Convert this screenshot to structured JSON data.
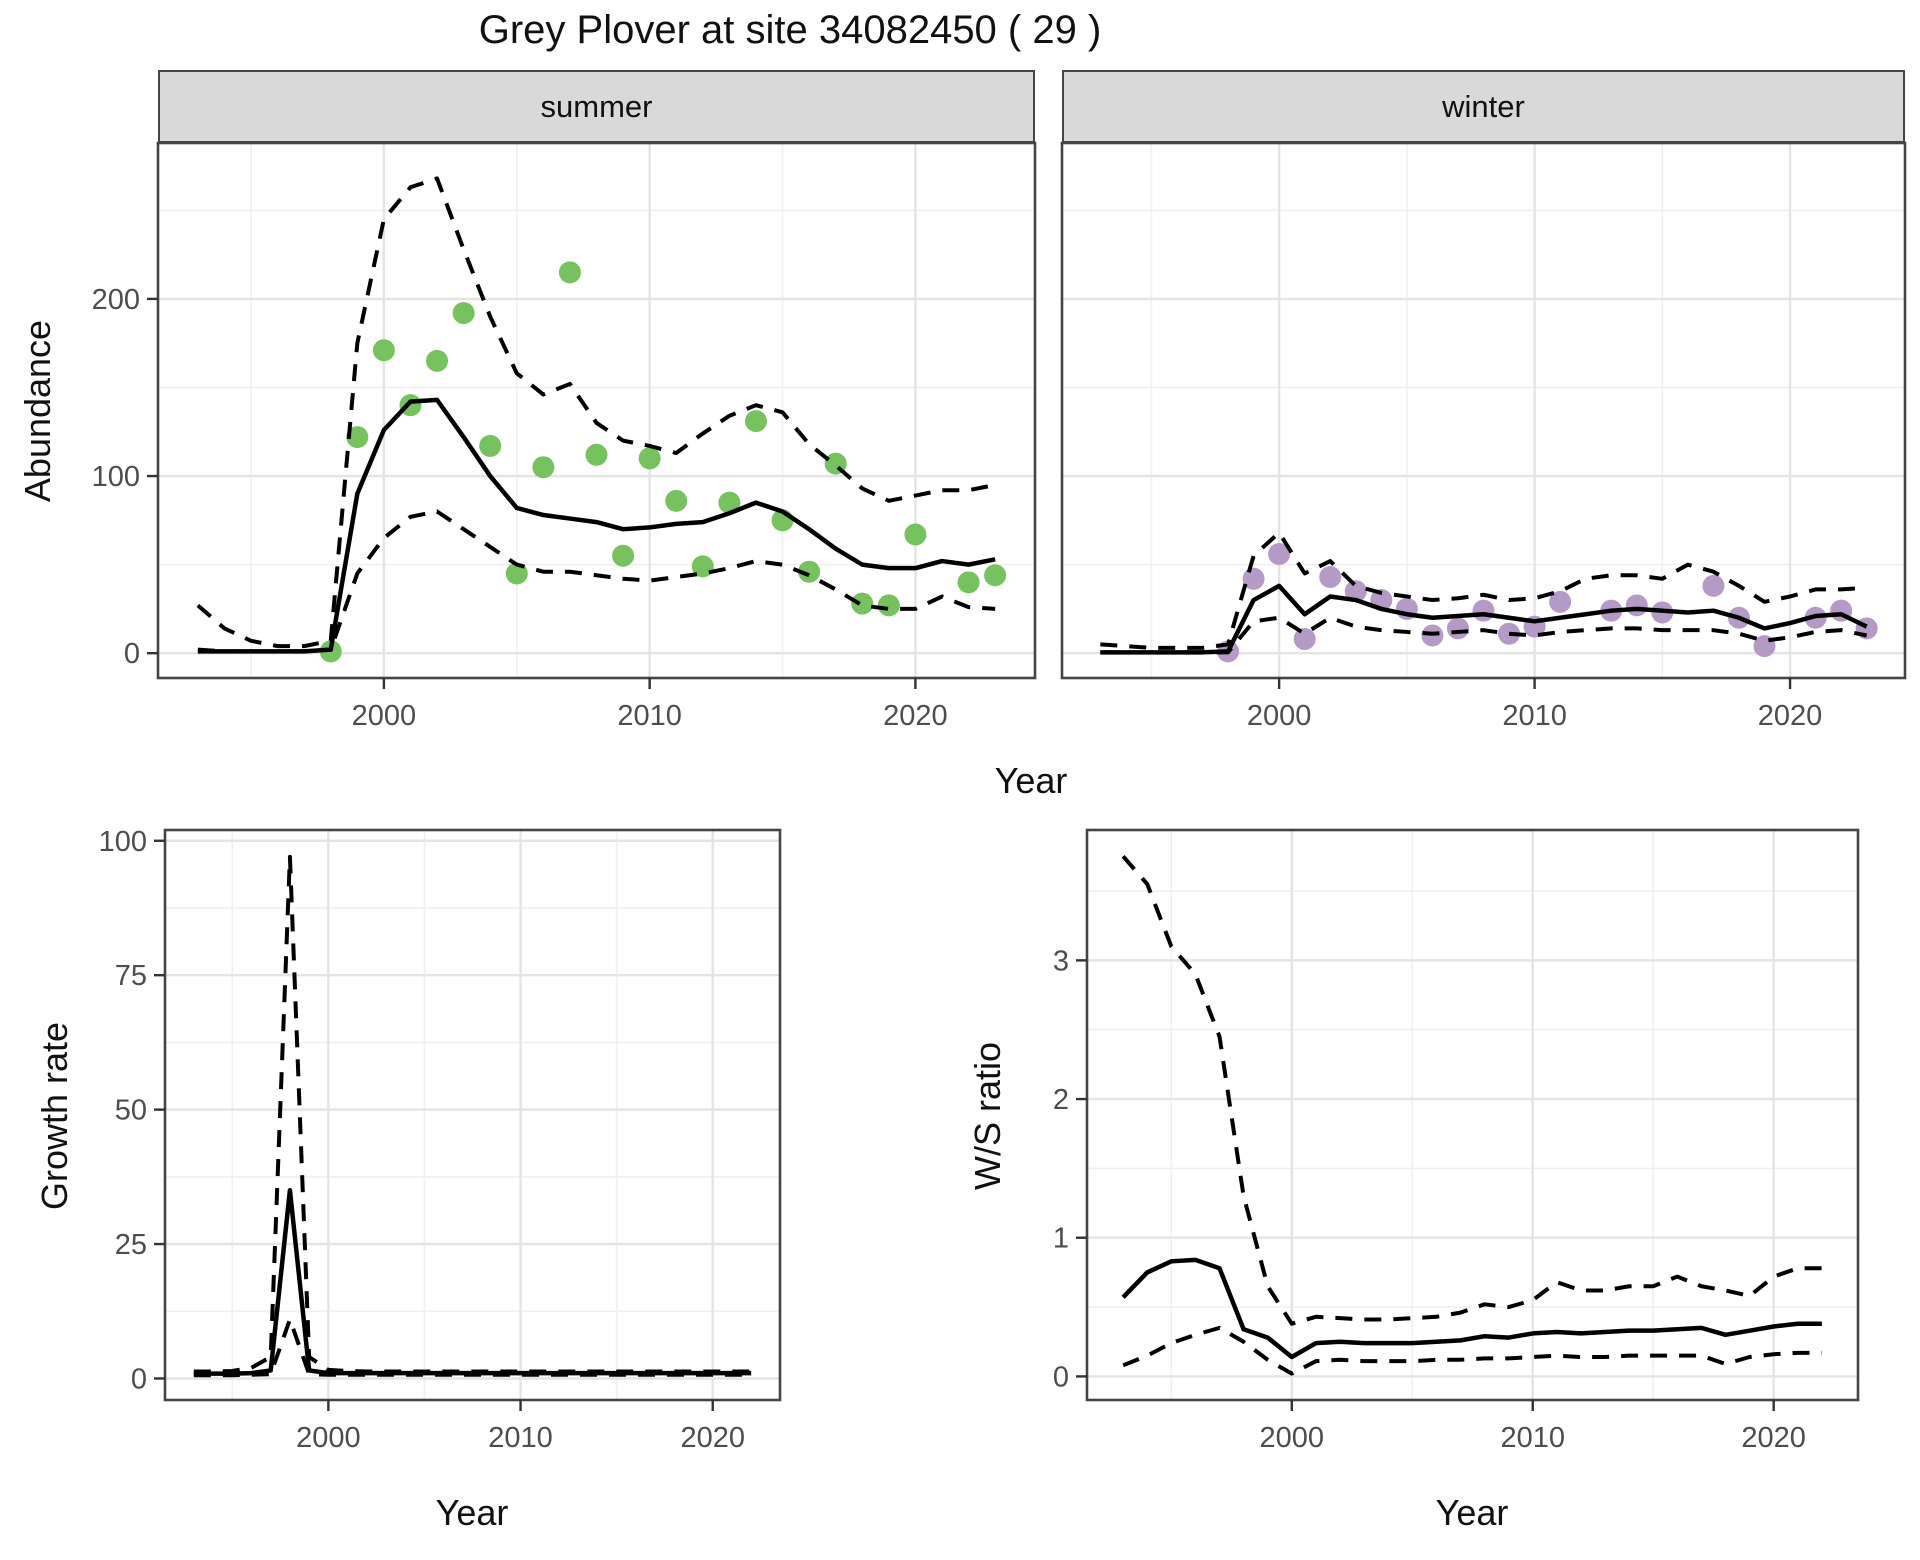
{
  "title": "Grey Plover at site 34082450 ( 29 )",
  "colors": {
    "summer_point": "#75c25f",
    "winter_point": "#b59ac8",
    "line": "#000000",
    "strip_bg": "#d9d9d9",
    "panel_border": "#454545",
    "grid_major": "#e4e4e4",
    "grid_minor": "#f0f0f0",
    "tick_label": "#4d4d4d"
  },
  "chart_data": [
    {
      "id": "abundance-summer",
      "type": "line+scatter",
      "strip": "summer",
      "xlabel": "Year",
      "ylabel": "Abundance",
      "x_range": [
        1991.5,
        2024.5
      ],
      "y_range": [
        -14,
        288
      ],
      "x_ticks": [
        2000,
        2010,
        2020
      ],
      "x_minor": [
        1995,
        2005,
        2015
      ],
      "y_ticks": [
        0,
        100,
        200
      ],
      "y_minor": [
        50,
        150,
        250
      ],
      "show_y_labels": true,
      "x": [
        1993,
        1994,
        1995,
        1996,
        1997,
        1998,
        1999,
        2000,
        2001,
        2002,
        2003,
        2004,
        2005,
        2006,
        2007,
        2008,
        2009,
        2010,
        2011,
        2012,
        2013,
        2014,
        2015,
        2016,
        2017,
        2018,
        2019,
        2020,
        2021,
        2022,
        2023
      ],
      "series": [
        {
          "name": "upper95",
          "style": "dashed",
          "y": [
            27,
            14,
            7,
            4,
            4,
            7,
            175,
            245,
            263,
            268,
            228,
            190,
            158,
            146,
            152,
            130,
            120,
            117,
            113,
            124,
            134,
            140,
            136,
            118,
            106,
            93,
            86,
            89,
            92,
            92,
            95
          ]
        },
        {
          "name": "fit",
          "style": "solid",
          "y": [
            1,
            1,
            1,
            1,
            1,
            2,
            90,
            126,
            142,
            143,
            122,
            100,
            82,
            78,
            76,
            74,
            70,
            71,
            73,
            74,
            79,
            85,
            80,
            70,
            59,
            50,
            48,
            48,
            52,
            50,
            53
          ]
        },
        {
          "name": "lower95",
          "style": "dashed",
          "y": [
            2,
            1,
            1,
            1,
            1,
            2,
            45,
            65,
            77,
            80,
            70,
            60,
            50,
            46,
            46,
            44,
            42,
            41,
            43,
            45,
            48,
            52,
            50,
            44,
            36,
            27,
            25,
            25,
            32,
            26,
            25
          ]
        }
      ],
      "points": {
        "color": "#75c25f",
        "x": [
          1998,
          1999,
          2000,
          2001,
          2002,
          2003,
          2004,
          2005,
          2006,
          2007,
          2008,
          2009,
          2010,
          2011,
          2012,
          2013,
          2014,
          2015,
          2016,
          2017,
          2018,
          2019,
          2020,
          2022,
          2023
        ],
        "y": [
          1,
          122,
          171,
          140,
          165,
          192,
          117,
          45,
          105,
          215,
          112,
          55,
          110,
          86,
          49,
          85,
          131,
          75,
          46,
          107,
          28,
          27,
          67,
          40,
          44
        ]
      }
    },
    {
      "id": "abundance-winter",
      "type": "line+scatter",
      "strip": "winter",
      "xlabel": "Year",
      "ylabel": "",
      "x_range": [
        1991.5,
        2024.5
      ],
      "y_range": [
        -14,
        288
      ],
      "x_ticks": [
        2000,
        2010,
        2020
      ],
      "x_minor": [
        1995,
        2005,
        2015
      ],
      "y_ticks": [
        0,
        100,
        200
      ],
      "y_minor": [
        50,
        150,
        250
      ],
      "show_y_labels": false,
      "x": [
        1993,
        1994,
        1995,
        1996,
        1997,
        1998,
        1999,
        2000,
        2001,
        2002,
        2003,
        2004,
        2005,
        2006,
        2007,
        2008,
        2009,
        2010,
        2011,
        2012,
        2013,
        2014,
        2015,
        2016,
        2017,
        2018,
        2019,
        2020,
        2021,
        2022,
        2023
      ],
      "series": [
        {
          "name": "upper95",
          "style": "dashed",
          "y": [
            5,
            4,
            3,
            3,
            3,
            5,
            55,
            68,
            45,
            52,
            38,
            34,
            32,
            30,
            31,
            33,
            30,
            31,
            35,
            42,
            44,
            44,
            42,
            50,
            46,
            38,
            29,
            32,
            36,
            36,
            37
          ]
        },
        {
          "name": "fit",
          "style": "solid",
          "y": [
            0.5,
            0.5,
            0.5,
            0.5,
            0.5,
            1,
            30,
            38,
            22,
            32,
            30,
            25,
            22,
            20,
            21,
            22,
            20,
            18,
            20,
            22,
            24,
            25,
            24,
            23,
            24,
            20,
            14,
            17,
            21,
            22,
            15
          ]
        },
        {
          "name": "lower95",
          "style": "dashed",
          "y": [
            0.5,
            0.5,
            0.5,
            0.5,
            0.5,
            0.5,
            18,
            20,
            11,
            20,
            15,
            13,
            12,
            11,
            12,
            13,
            11,
            10,
            12,
            13,
            14,
            14,
            13,
            13,
            13,
            11,
            7,
            9,
            12,
            13,
            10
          ]
        }
      ],
      "points": {
        "color": "#b59ac8",
        "x": [
          1998,
          1999,
          2000,
          2001,
          2002,
          2003,
          2004,
          2005,
          2006,
          2007,
          2008,
          2009,
          2010,
          2011,
          2013,
          2014,
          2015,
          2017,
          2018,
          2019,
          2021,
          2022,
          2023
        ],
        "y": [
          1,
          42,
          56,
          8,
          43,
          35,
          30,
          25,
          10,
          14,
          24,
          11,
          15,
          29,
          24,
          27,
          23,
          38,
          20,
          4,
          20,
          24,
          14
        ]
      }
    },
    {
      "id": "growth-rate",
      "type": "line",
      "strip": null,
      "xlabel": "Year",
      "ylabel": "Growth rate",
      "x_range": [
        1991.5,
        2023.5
      ],
      "y_range": [
        -4,
        102
      ],
      "x_ticks": [
        2000,
        2010,
        2020
      ],
      "x_minor": [
        1995,
        2005,
        2015
      ],
      "y_ticks": [
        0,
        25,
        50,
        75,
        100
      ],
      "y_minor": [
        12.5,
        37.5,
        62.5,
        87.5
      ],
      "show_y_labels": true,
      "x": [
        1993,
        1994,
        1995,
        1996,
        1997,
        1998,
        1999,
        2000,
        2001,
        2002,
        2003,
        2004,
        2005,
        2006,
        2007,
        2008,
        2009,
        2010,
        2011,
        2012,
        2013,
        2014,
        2015,
        2016,
        2017,
        2018,
        2019,
        2020,
        2021,
        2022
      ],
      "series": [
        {
          "name": "upper95",
          "style": "dashed",
          "y": [
            1.3,
            1.3,
            1.4,
            2.0,
            4.0,
            97,
            4.0,
            1.6,
            1.4,
            1.3,
            1.3,
            1.3,
            1.3,
            1.3,
            1.3,
            1.3,
            1.3,
            1.3,
            1.3,
            1.3,
            1.3,
            1.3,
            1.3,
            1.3,
            1.3,
            1.3,
            1.3,
            1.3,
            1.3,
            1.3
          ]
        },
        {
          "name": "fit",
          "style": "solid",
          "y": [
            0.9,
            0.9,
            0.9,
            1.0,
            1.5,
            35,
            1.5,
            1.0,
            1.0,
            1.0,
            1.0,
            1.0,
            1.0,
            1.0,
            1.0,
            1.0,
            1.0,
            1.0,
            1.0,
            1.0,
            1.0,
            1.0,
            1.0,
            1.0,
            1.0,
            1.0,
            1.0,
            1.0,
            1.0,
            1.0
          ]
        },
        {
          "name": "lower95",
          "style": "dashed",
          "y": [
            0.6,
            0.6,
            0.6,
            0.7,
            0.8,
            11,
            0.8,
            0.7,
            0.7,
            0.7,
            0.7,
            0.7,
            0.7,
            0.7,
            0.7,
            0.7,
            0.7,
            0.7,
            0.7,
            0.7,
            0.7,
            0.7,
            0.7,
            0.7,
            0.7,
            0.7,
            0.7,
            0.7,
            0.7,
            0.7
          ]
        }
      ],
      "points": null
    },
    {
      "id": "ws-ratio",
      "type": "line",
      "strip": null,
      "xlabel": "Year",
      "ylabel": "W/S ratio",
      "x_range": [
        1991.5,
        2023.5
      ],
      "y_range": [
        -0.17,
        3.94
      ],
      "x_ticks": [
        2000,
        2010,
        2020
      ],
      "x_minor": [
        1995,
        2005,
        2015
      ],
      "y_ticks": [
        0,
        1,
        2,
        3
      ],
      "y_minor": [
        0.5,
        1.5,
        2.5,
        3.5
      ],
      "show_y_labels": true,
      "x": [
        1993,
        1994,
        1995,
        1996,
        1997,
        1998,
        1999,
        2000,
        2001,
        2002,
        2003,
        2004,
        2005,
        2006,
        2007,
        2008,
        2009,
        2010,
        2011,
        2012,
        2013,
        2014,
        2015,
        2016,
        2017,
        2018,
        2019,
        2020,
        2021,
        2022
      ],
      "series": [
        {
          "name": "upper95",
          "style": "dashed",
          "y": [
            3.75,
            3.55,
            3.1,
            2.9,
            2.45,
            1.3,
            0.65,
            0.38,
            0.43,
            0.42,
            0.41,
            0.41,
            0.42,
            0.43,
            0.46,
            0.52,
            0.5,
            0.55,
            0.68,
            0.62,
            0.62,
            0.65,
            0.65,
            0.72,
            0.65,
            0.62,
            0.58,
            0.72,
            0.78,
            0.78
          ]
        },
        {
          "name": "fit",
          "style": "solid",
          "y": [
            0.57,
            0.75,
            0.83,
            0.84,
            0.78,
            0.34,
            0.28,
            0.14,
            0.24,
            0.25,
            0.24,
            0.24,
            0.24,
            0.25,
            0.26,
            0.29,
            0.28,
            0.31,
            0.32,
            0.31,
            0.32,
            0.33,
            0.33,
            0.34,
            0.35,
            0.3,
            0.33,
            0.36,
            0.38,
            0.38
          ]
        },
        {
          "name": "lower95",
          "style": "dashed",
          "y": [
            0.08,
            0.15,
            0.24,
            0.3,
            0.35,
            0.25,
            0.12,
            0.02,
            0.11,
            0.12,
            0.11,
            0.11,
            0.11,
            0.12,
            0.12,
            0.13,
            0.13,
            0.14,
            0.15,
            0.14,
            0.14,
            0.15,
            0.15,
            0.15,
            0.15,
            0.09,
            0.14,
            0.16,
            0.17,
            0.17
          ]
        }
      ],
      "points": null
    }
  ]
}
